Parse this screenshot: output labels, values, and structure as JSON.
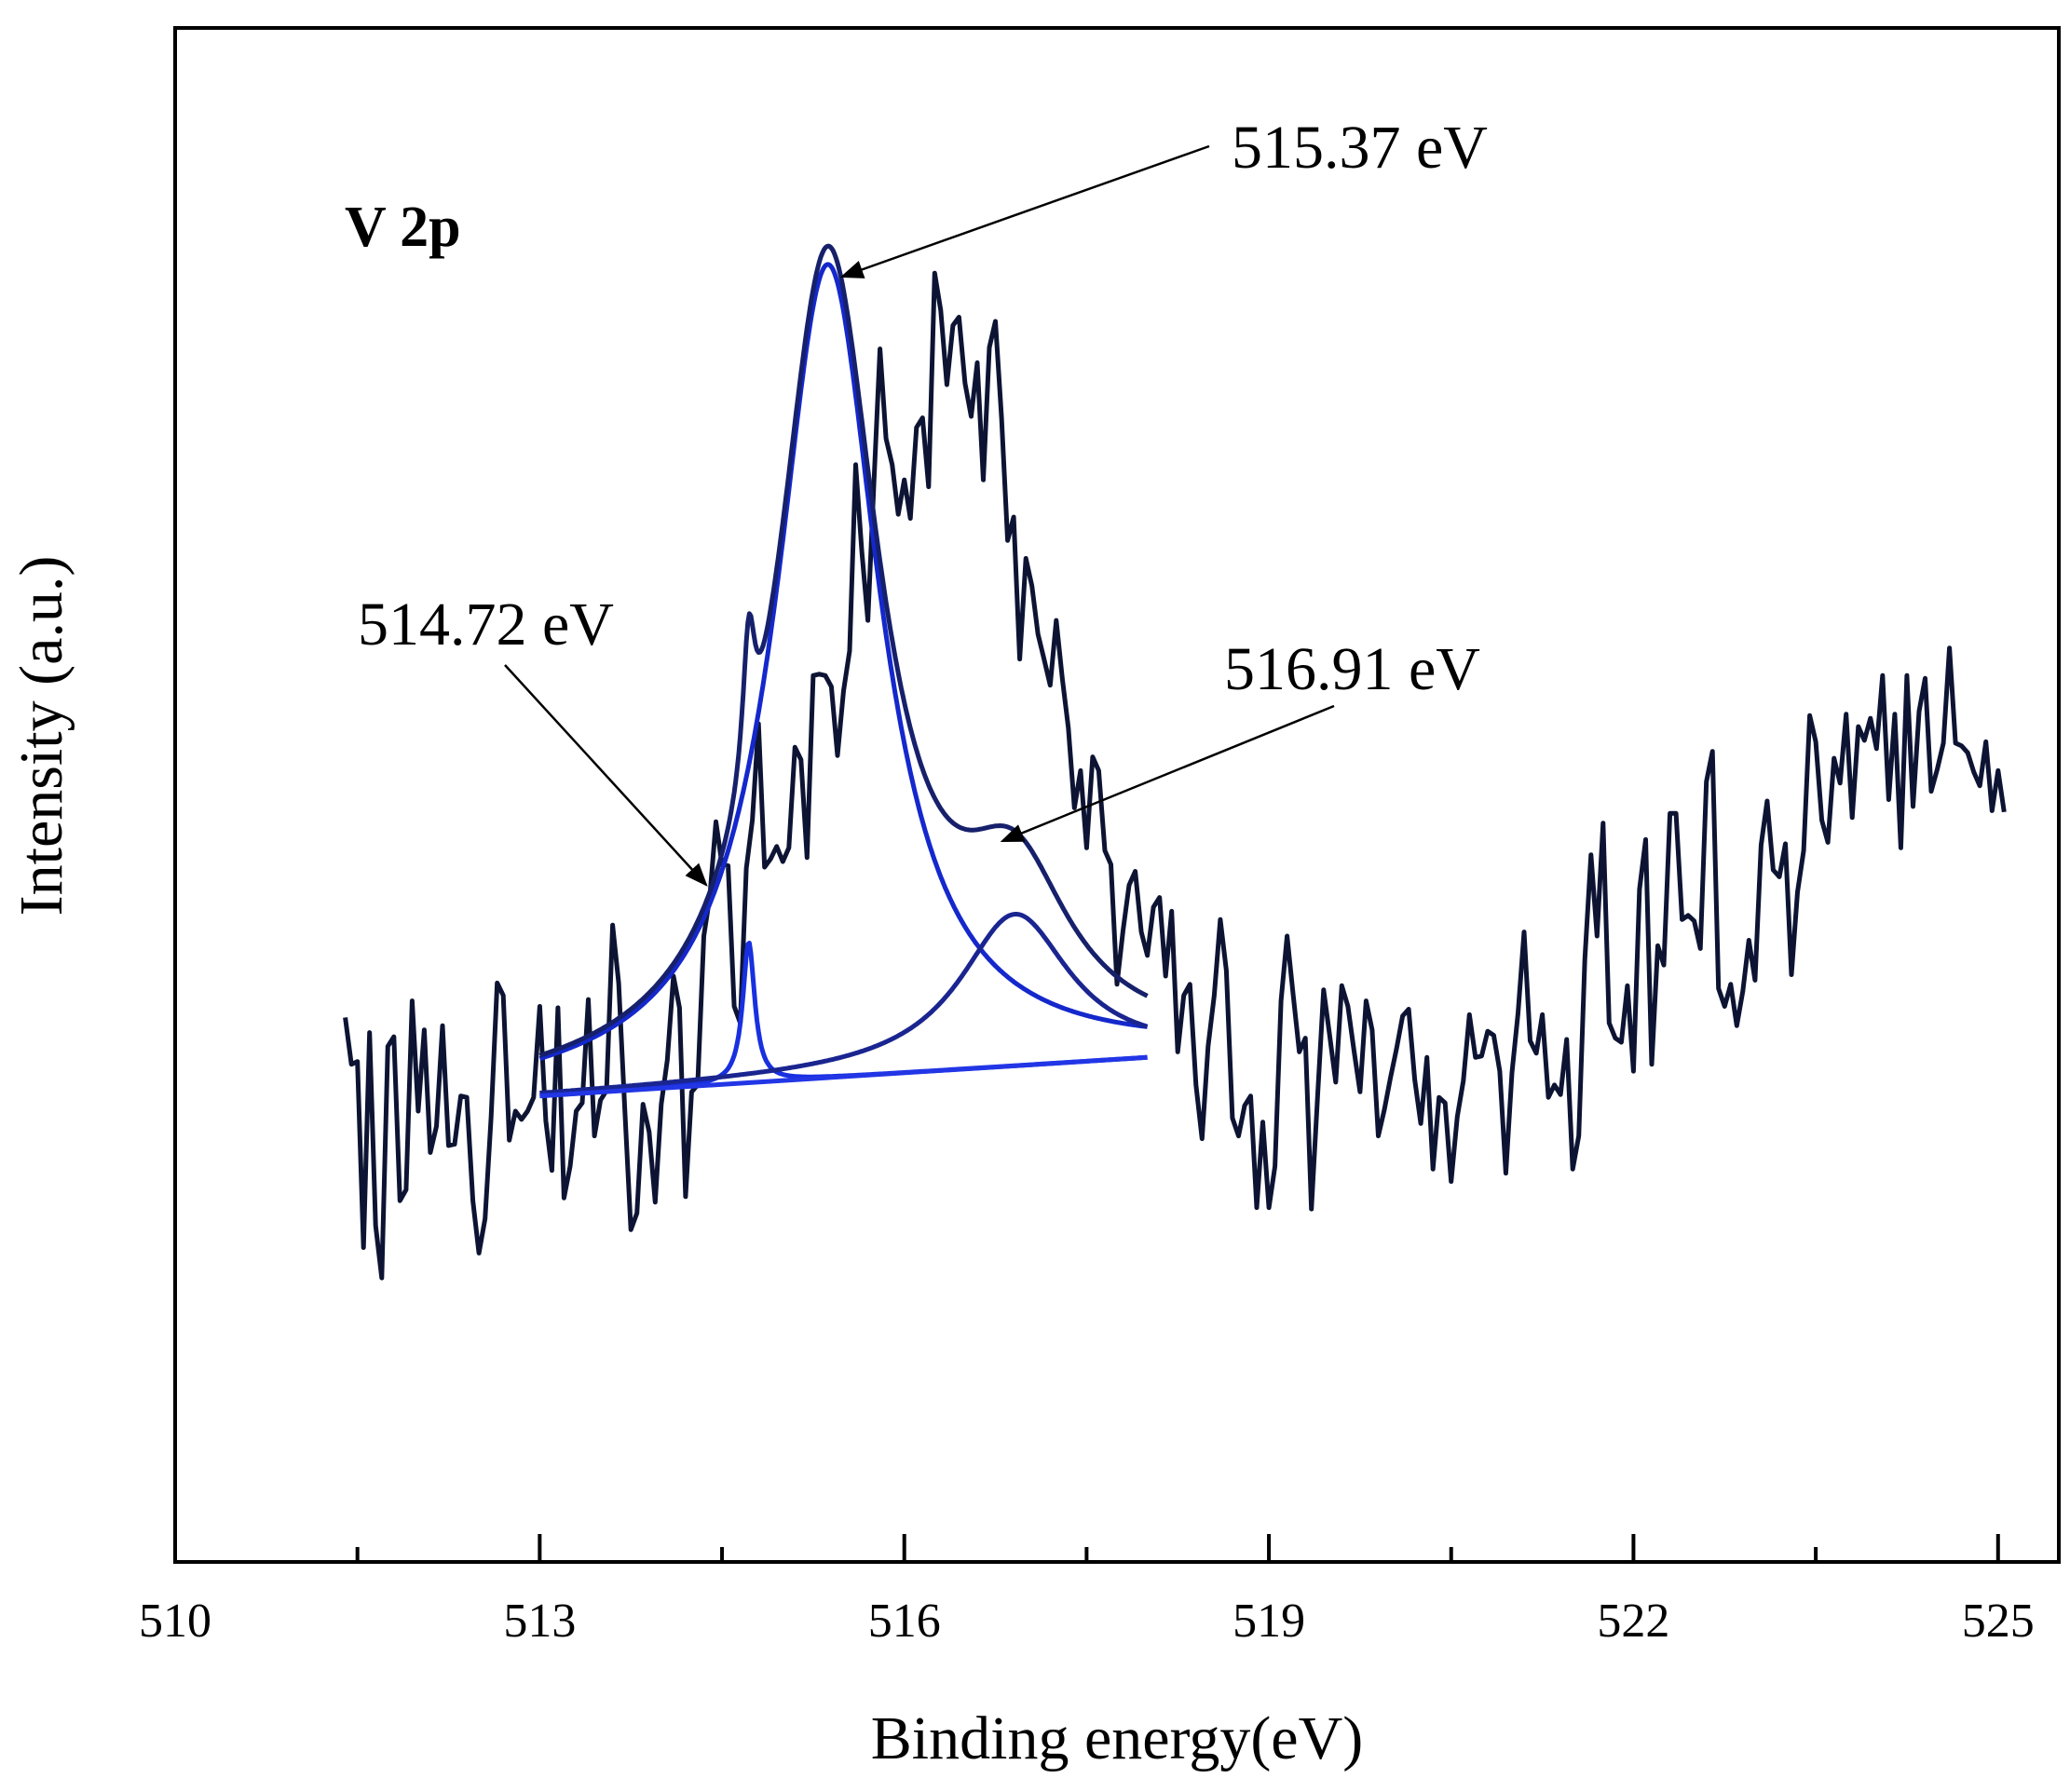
{
  "chart_data": {
    "type": "line",
    "title": "",
    "panel_label": "V 2p",
    "xlabel": "Binding energy(eV)",
    "ylabel": "Intensity (a.u.)",
    "xlim": [
      510,
      525.5
    ],
    "ylim": [
      0,
      1
    ],
    "x_ticks": [
      510,
      513,
      516,
      519,
      522,
      525
    ],
    "x_minor_ticks": [
      511.5,
      514.5,
      517.5,
      520.5,
      523.5
    ],
    "y_ticks": [],
    "grid": false,
    "legend": "none",
    "colors": {
      "raw": "#0d1433",
      "envelope": "#16206b",
      "peak_main": "#1428cc",
      "peak_low": "#1830e0",
      "peak_high": "#1a2590",
      "background": "#2236e6",
      "axis": "#000000",
      "arrow": "#000000"
    },
    "background_line": {
      "x_start": 513.0,
      "x_end": 518.0,
      "y_start": 0.286,
      "y_end": 0.314
    },
    "peaks": [
      {
        "name": "peak_low",
        "center": 514.72,
        "amplitude": 0.102,
        "hwhm": 0.06
      },
      {
        "name": "peak_main",
        "center": 515.37,
        "amplitude": 0.59,
        "hwhm": 0.52
      },
      {
        "name": "peak_high",
        "center": 516.91,
        "amplitude": 0.11,
        "hwhm": 0.55
      }
    ],
    "fit_range": [
      513.0,
      518.0
    ],
    "raw_series": {
      "name": "raw",
      "x_start": 511.4,
      "x_step": 0.05,
      "y": [
        0.343,
        0.309,
        0.311,
        0.176,
        0.332,
        0.192,
        0.154,
        0.322,
        0.329,
        0.21,
        0.218,
        0.355,
        0.275,
        0.334,
        0.245,
        0.264,
        0.337,
        0.25,
        0.251,
        0.286,
        0.285,
        0.21,
        0.172,
        0.197,
        0.271,
        0.368,
        0.359,
        0.254,
        0.275,
        0.269,
        0.275,
        0.285,
        0.351,
        0.268,
        0.232,
        0.35,
        0.212,
        0.235,
        0.275,
        0.281,
        0.356,
        0.257,
        0.283,
        0.29,
        0.41,
        0.368,
        0.276,
        0.189,
        0.201,
        0.28,
        0.26,
        0.209,
        0.28,
        0.312,
        0.373,
        0.35,
        0.213,
        0.289,
        0.294,
        0.402,
        0.431,
        0.485,
        0.454,
        0.453,
        0.351,
        0.339,
        0.451,
        0.486,
        0.556,
        0.452,
        0.458,
        0.467,
        0.456,
        0.466,
        0.539,
        0.53,
        0.459,
        0.591,
        0.592,
        0.591,
        0.583,
        0.533,
        0.58,
        0.609,
        0.744,
        0.681,
        0.631,
        0.731,
        0.828,
        0.763,
        0.744,
        0.708,
        0.733,
        0.705,
        0.771,
        0.778,
        0.728,
        0.883,
        0.856,
        0.802,
        0.845,
        0.851,
        0.803,
        0.779,
        0.818,
        0.733,
        0.829,
        0.848,
        0.778,
        0.689,
        0.706,
        0.603,
        0.676,
        0.656,
        0.621,
        0.603,
        0.584,
        0.631,
        0.589,
        0.553,
        0.495,
        0.522,
        0.466,
        0.532,
        0.522,
        0.464,
        0.454,
        0.367,
        0.406,
        0.439,
        0.449,
        0.405,
        0.388,
        0.423,
        0.43,
        0.373,
        0.42,
        0.318,
        0.359,
        0.367,
        0.294,
        0.255,
        0.322,
        0.359,
        0.414,
        0.377,
        0.27,
        0.257,
        0.279,
        0.286,
        0.205,
        0.267,
        0.205,
        0.235,
        0.355,
        0.402,
        0.359,
        0.318,
        0.328,
        0.204,
        0.284,
        0.363,
        0.33,
        0.296,
        0.366,
        0.351,
        0.319,
        0.289,
        0.355,
        0.334,
        0.257,
        0.276,
        0.299,
        0.32,
        0.344,
        0.349,
        0.298,
        0.266,
        0.314,
        0.233,
        0.285,
        0.281,
        0.224,
        0.271,
        0.297,
        0.345,
        0.314,
        0.315,
        0.333,
        0.33,
        0.304,
        0.23,
        0.303,
        0.346,
        0.405,
        0.326,
        0.317,
        0.345,
        0.285,
        0.294,
        0.287,
        0.327,
        0.233,
        0.257,
        0.385,
        0.461,
        0.402,
        0.484,
        0.339,
        0.328,
        0.325,
        0.366,
        0.304,
        0.436,
        0.472,
        0.309,
        0.395,
        0.381,
        0.491,
        0.491,
        0.414,
        0.417,
        0.413,
        0.393,
        0.514,
        0.536,
        0.364,
        0.351,
        0.367,
        0.337,
        0.362,
        0.399,
        0.37,
        0.468,
        0.5,
        0.45,
        0.445,
        0.469,
        0.374,
        0.434,
        0.464,
        0.562,
        0.543,
        0.486,
        0.47,
        0.531,
        0.513,
        0.563,
        0.488,
        0.554,
        0.544,
        0.56,
        0.538,
        0.591,
        0.501,
        0.563,
        0.466,
        0.591,
        0.496,
        0.565,
        0.589,
        0.507,
        0.523,
        0.542,
        0.611,
        0.542,
        0.54,
        0.535,
        0.521,
        0.511,
        0.543,
        0.493,
        0.522,
        0.492
      ]
    }
  },
  "annotations": [
    {
      "text": "515.37 eV",
      "target_x": 515.37
    },
    {
      "text": "514.72 eV",
      "target_x": 514.72
    },
    {
      "text": "516.91 eV",
      "target_x": 516.91
    }
  ]
}
